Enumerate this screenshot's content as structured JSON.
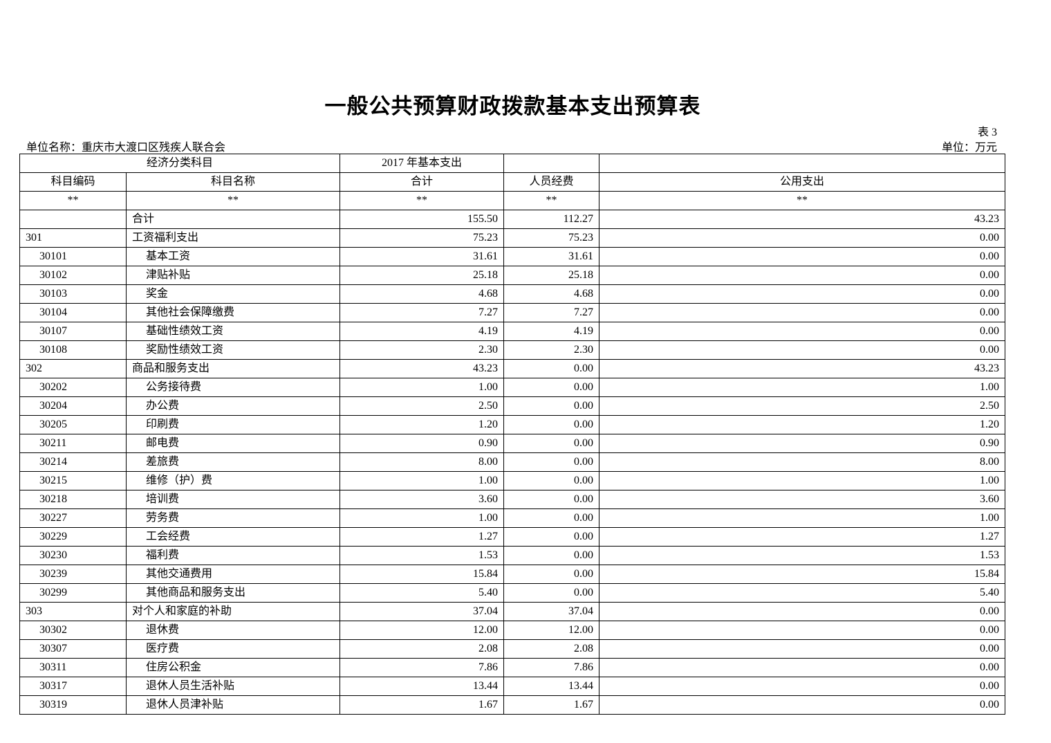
{
  "title": "一般公共预算财政拨款基本支出预算表",
  "table_no": "表 3",
  "unit_name": "单位名称：重庆市大渡口区残疾人联合会",
  "unit": "单位：万元",
  "header": {
    "group1": "经济分类科目",
    "group2": "2017 年基本支出",
    "code": "科目编码",
    "name": "科目名称",
    "total": "合计",
    "personnel": "人员经费",
    "public": "公用支出",
    "mark": "**"
  },
  "rows": [
    [
      "",
      "合计",
      "155.50",
      "112.27",
      "43.23",
      0
    ],
    [
      "301",
      "工资福利支出",
      "75.23",
      "75.23",
      "0.00",
      0
    ],
    [
      "30101",
      "基本工资",
      "31.61",
      "31.61",
      "0.00",
      1
    ],
    [
      "30102",
      "津贴补贴",
      "25.18",
      "25.18",
      "0.00",
      1
    ],
    [
      "30103",
      "奖金",
      "4.68",
      "4.68",
      "0.00",
      1
    ],
    [
      "30104",
      "其他社会保障缴费",
      "7.27",
      "7.27",
      "0.00",
      1
    ],
    [
      "30107",
      "基础性绩效工资",
      "4.19",
      "4.19",
      "0.00",
      1
    ],
    [
      "30108",
      "奖励性绩效工资",
      "2.30",
      "2.30",
      "0.00",
      1
    ],
    [
      "302",
      "商品和服务支出",
      "43.23",
      "0.00",
      "43.23",
      0
    ],
    [
      "30202",
      "公务接待费",
      "1.00",
      "0.00",
      "1.00",
      1
    ],
    [
      "30204",
      "办公费",
      "2.50",
      "0.00",
      "2.50",
      1
    ],
    [
      "30205",
      "印刷费",
      "1.20",
      "0.00",
      "1.20",
      1
    ],
    [
      "30211",
      "邮电费",
      "0.90",
      "0.00",
      "0.90",
      1
    ],
    [
      "30214",
      "差旅费",
      "8.00",
      "0.00",
      "8.00",
      1
    ],
    [
      "30215",
      "维修（护）费",
      "1.00",
      "0.00",
      "1.00",
      1
    ],
    [
      "30218",
      "培训费",
      "3.60",
      "0.00",
      "3.60",
      1
    ],
    [
      "30227",
      "劳务费",
      "1.00",
      "0.00",
      "1.00",
      1
    ],
    [
      "30229",
      "工会经费",
      "1.27",
      "0.00",
      "1.27",
      1
    ],
    [
      "30230",
      "福利费",
      "1.53",
      "0.00",
      "1.53",
      1
    ],
    [
      "30239",
      "其他交通费用",
      "15.84",
      "0.00",
      "15.84",
      1
    ],
    [
      "30299",
      "其他商品和服务支出",
      "5.40",
      "0.00",
      "5.40",
      1
    ],
    [
      "303",
      "对个人和家庭的补助",
      "37.04",
      "37.04",
      "0.00",
      0
    ],
    [
      "30302",
      "退休费",
      "12.00",
      "12.00",
      "0.00",
      1
    ],
    [
      "30307",
      "医疗费",
      "2.08",
      "2.08",
      "0.00",
      1
    ],
    [
      "30311",
      "住房公积金",
      "7.86",
      "7.86",
      "0.00",
      1
    ],
    [
      "30317",
      "退休人员生活补贴",
      "13.44",
      "13.44",
      "0.00",
      1
    ],
    [
      "30319",
      "退休人员津补贴",
      "1.67",
      "1.67",
      "0.00",
      1
    ]
  ]
}
